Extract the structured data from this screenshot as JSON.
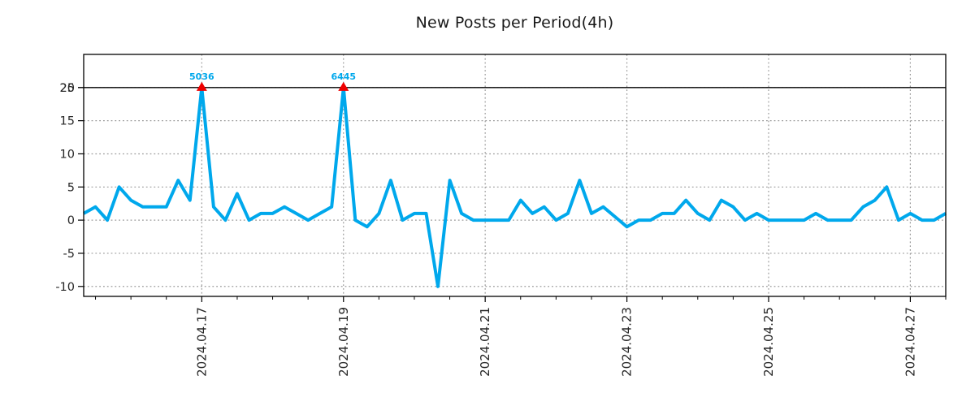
{
  "chart_data": {
    "type": "line",
    "title": "New Posts per Period(4h)",
    "period": "4h",
    "values": [
      1,
      2,
      0,
      5,
      3,
      2,
      2,
      2,
      6,
      3,
      5036,
      2,
      0,
      4,
      0,
      1,
      1,
      2,
      1,
      0,
      1,
      2,
      6445,
      0,
      -1,
      1,
      6,
      0,
      1,
      1,
      -10,
      6,
      1,
      0,
      0,
      0,
      0,
      3,
      1,
      2,
      0,
      1,
      6,
      1,
      2,
      0.5,
      -1,
      0,
      0,
      1,
      1,
      3,
      1,
      0,
      3,
      2,
      0,
      1,
      0,
      0,
      0,
      0,
      1,
      0,
      0,
      0,
      2,
      3,
      5,
      0,
      1,
      0,
      0,
      1
    ],
    "clip_max": 20,
    "hline": 20,
    "annotations": [
      {
        "index": 10,
        "label": "5036",
        "value": 5036
      },
      {
        "index": 22,
        "label": "6445",
        "value": 6445
      }
    ],
    "x_tick_labels": [
      "2024.04.17",
      "2024.04.19",
      "2024.04.21",
      "2024.04.23",
      "2024.04.25",
      "2024.04.27"
    ],
    "x_tick_indices": [
      10,
      22,
      34,
      46,
      58,
      70
    ],
    "x_minor_every": 3,
    "y_ticks": [
      25,
      20,
      15,
      10,
      5,
      0,
      -5,
      -10
    ],
    "ylim": [
      -11.5,
      25
    ],
    "grid": "dotted",
    "legend": "none",
    "colors": {
      "line": "#00a8ec",
      "annotation_text": "#00a8ec",
      "marker": "#ee0000",
      "grid": "#999999",
      "threshold_line": "#000000",
      "axis": "#000000",
      "tick_text": "#262626",
      "background": "#ffffff"
    }
  }
}
